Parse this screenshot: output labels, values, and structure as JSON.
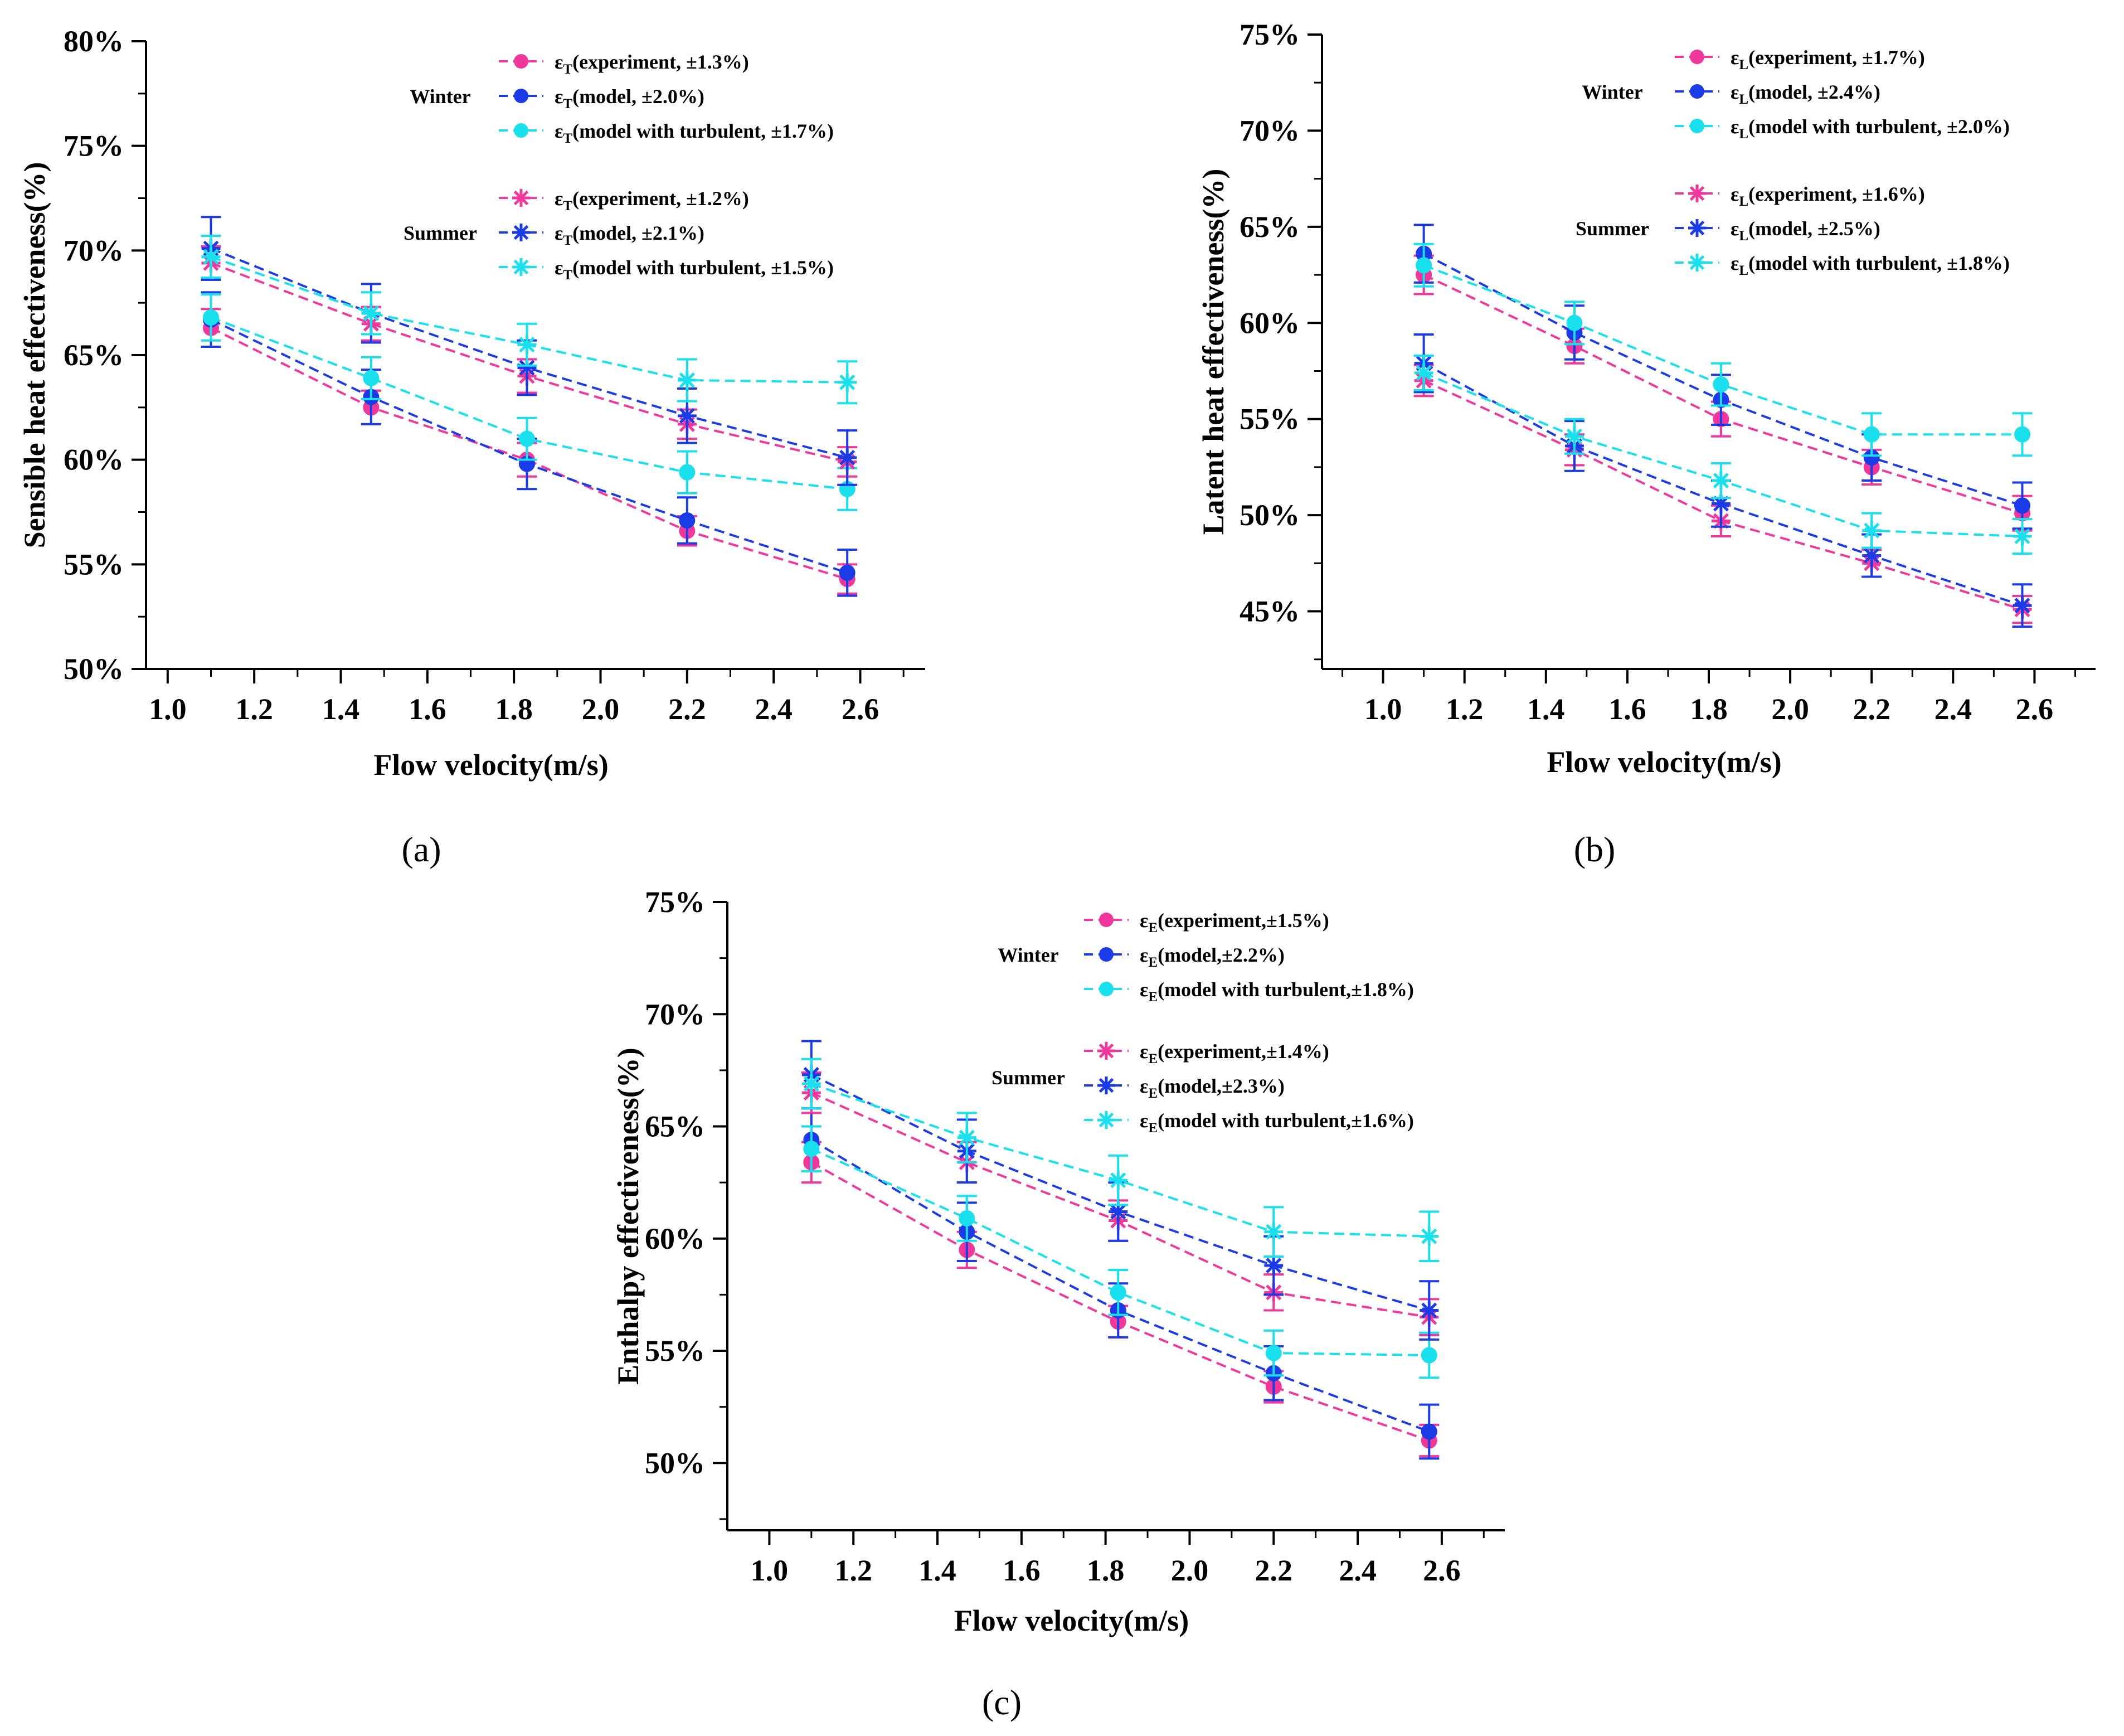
{
  "colors": {
    "experiment": "#f0379b",
    "model": "#1a3be6",
    "turbulent": "#19e0ec",
    "axis": "#000000"
  },
  "chart_data": [
    {
      "type": "line",
      "panel_label": "(a)",
      "xlabel": "Flow velocity(m/s)",
      "ylabel": "Sensible heat effectiveness(%)",
      "xlim": [
        0.95,
        2.75
      ],
      "ylim": [
        50,
        80
      ],
      "xticks": [
        "1.0",
        "1.2",
        "1.4",
        "1.6",
        "1.8",
        "2.0",
        "2.2",
        "2.4",
        "2.6"
      ],
      "yticks": [
        "50%",
        "55%",
        "60%",
        "65%",
        "70%",
        "75%",
        "80%"
      ],
      "season_labels": {
        "winter": "Winter",
        "summer": "Summer"
      },
      "x": [
        1.1,
        1.47,
        1.83,
        2.2,
        2.57
      ],
      "series": [
        {
          "name": "ε_T(experiment, ±1.3%)",
          "symbol": "ε",
          "sub": "T",
          "desc": "(experiment, ±1.3%)",
          "season": "winter",
          "marker": "circle",
          "color_key": "experiment",
          "values": [
            66.3,
            62.5,
            60.0,
            56.6,
            54.3
          ],
          "err": [
            0.9,
            0.8,
            0.8,
            0.7,
            0.7
          ]
        },
        {
          "name": "ε_T(model, ±2.0%)",
          "symbol": "ε",
          "sub": "T",
          "desc": "(model, ±2.0%)",
          "season": "winter",
          "marker": "circle",
          "color_key": "model",
          "values": [
            66.7,
            63.0,
            59.8,
            57.1,
            54.6
          ],
          "err": [
            1.3,
            1.3,
            1.2,
            1.1,
            1.1
          ]
        },
        {
          "name": "ε_T(model with turbulent, ±1.7%)",
          "symbol": "ε",
          "sub": "T",
          "desc": "(model with turbulent, ±1.7%)",
          "season": "winter",
          "marker": "circle",
          "color_key": "turbulent",
          "values": [
            66.8,
            63.9,
            61.0,
            59.4,
            58.6
          ],
          "err": [
            1.1,
            1.0,
            1.0,
            1.0,
            1.0
          ]
        },
        {
          "name": "ε_T(experiment, ±1.2%)",
          "symbol": "ε",
          "sub": "T",
          "desc": "(experiment, ±1.2%)",
          "season": "summer",
          "marker": "asterisk",
          "color_key": "experiment",
          "values": [
            69.4,
            66.5,
            64.0,
            61.7,
            59.9
          ],
          "err": [
            0.8,
            0.8,
            0.8,
            0.7,
            0.7
          ]
        },
        {
          "name": "ε_T(model, ±2.1%)",
          "symbol": "ε",
          "sub": "T",
          "desc": "(model, ±2.1%)",
          "season": "summer",
          "marker": "asterisk",
          "color_key": "model",
          "values": [
            70.1,
            67.0,
            64.4,
            62.1,
            60.1
          ],
          "err": [
            1.5,
            1.4,
            1.3,
            1.3,
            1.3
          ]
        },
        {
          "name": "ε_T(model with turbulent, ±1.5%)",
          "symbol": "ε",
          "sub": "T",
          "desc": "(model with turbulent, ±1.5%)",
          "season": "summer",
          "marker": "asterisk",
          "color_key": "turbulent",
          "values": [
            69.7,
            67.0,
            65.5,
            63.8,
            63.7
          ],
          "err": [
            1.0,
            1.0,
            1.0,
            1.0,
            1.0
          ]
        }
      ]
    },
    {
      "type": "line",
      "panel_label": "(b)",
      "xlabel": "Flow velocity(m/s)",
      "ylabel": "Latent heat effectiveness(%)",
      "xlim": [
        0.85,
        2.75
      ],
      "ylim": [
        42,
        75
      ],
      "xticks": [
        "1.0",
        "1.2",
        "1.4",
        "1.6",
        "1.8",
        "2.0",
        "2.2",
        "2.4",
        "2.6"
      ],
      "yticks": [
        "45%",
        "50%",
        "55%",
        "60%",
        "65%",
        "70%",
        "75%"
      ],
      "season_labels": {
        "winter": "Winter",
        "summer": "Summer"
      },
      "x": [
        1.1,
        1.47,
        1.83,
        2.2,
        2.57
      ],
      "series": [
        {
          "name": "ε_L(experiment, ±1.7%)",
          "symbol": "ε",
          "sub": "L",
          "desc": "(experiment, ±1.7%)",
          "season": "winter",
          "marker": "circle",
          "color_key": "experiment",
          "values": [
            62.5,
            58.8,
            55.0,
            52.5,
            50.1
          ],
          "err": [
            1.0,
            0.9,
            0.9,
            0.9,
            0.9
          ]
        },
        {
          "name": "ε_L(model, ±2.4%)",
          "symbol": "ε",
          "sub": "L",
          "desc": "(model, ±2.4%)",
          "season": "winter",
          "marker": "circle",
          "color_key": "model",
          "values": [
            63.6,
            59.5,
            56.0,
            53.0,
            50.5
          ],
          "err": [
            1.5,
            1.4,
            1.3,
            1.2,
            1.2
          ]
        },
        {
          "name": "ε_L(model with turbulent, ±2.0%)",
          "symbol": "ε",
          "sub": "L",
          "desc": "(model with turbulent, ±2.0%)",
          "season": "winter",
          "marker": "circle",
          "color_key": "turbulent",
          "values": [
            63.0,
            60.0,
            56.8,
            54.2,
            54.2
          ],
          "err": [
            1.1,
            1.1,
            1.1,
            1.1,
            1.1
          ]
        },
        {
          "name": "ε_L(experiment, ±1.6%)",
          "symbol": "ε",
          "sub": "L",
          "desc": "(experiment, ±1.6%)",
          "season": "summer",
          "marker": "asterisk",
          "color_key": "experiment",
          "values": [
            57.0,
            53.4,
            49.7,
            47.5,
            45.1
          ],
          "err": [
            0.8,
            0.8,
            0.8,
            0.7,
            0.7
          ]
        },
        {
          "name": "ε_L(model, ±2.5%)",
          "symbol": "ε",
          "sub": "L",
          "desc": "(model, ±2.5%)",
          "season": "summer",
          "marker": "asterisk",
          "color_key": "model",
          "values": [
            57.9,
            53.6,
            50.6,
            47.9,
            45.3
          ],
          "err": [
            1.5,
            1.3,
            1.2,
            1.1,
            1.1
          ]
        },
        {
          "name": "ε_L(model with turbulent, ±1.8%)",
          "symbol": "ε",
          "sub": "L",
          "desc": "(model with turbulent, ±1.8%)",
          "season": "summer",
          "marker": "asterisk",
          "color_key": "turbulent",
          "values": [
            57.4,
            54.1,
            51.8,
            49.2,
            48.9
          ],
          "err": [
            0.9,
            0.9,
            0.9,
            0.9,
            0.9
          ]
        }
      ]
    },
    {
      "type": "line",
      "panel_label": "(c)",
      "xlabel": "Flow velocity(m/s)",
      "ylabel": "Enthalpy effectiveness(%)",
      "xlim": [
        0.9,
        2.75
      ],
      "ylim": [
        47,
        75
      ],
      "xticks": [
        "1.0",
        "1.2",
        "1.4",
        "1.6",
        "1.8",
        "2.0",
        "2.2",
        "2.4",
        "2.6"
      ],
      "yticks": [
        "50%",
        "55%",
        "60%",
        "65%",
        "70%",
        "75%"
      ],
      "season_labels": {
        "winter": "Winter",
        "summer": "Summer"
      },
      "x": [
        1.1,
        1.47,
        1.83,
        2.2,
        2.57
      ],
      "series": [
        {
          "name": "ε_E(experiment,±1.5%)",
          "symbol": "ε",
          "sub": "E",
          "desc": "(experiment,±1.5%)",
          "season": "winter",
          "marker": "circle",
          "color_key": "experiment",
          "values": [
            63.4,
            59.5,
            56.3,
            53.4,
            51.0
          ],
          "err": [
            0.9,
            0.8,
            0.7,
            0.7,
            0.7
          ]
        },
        {
          "name": "ε_E(model,±2.2%)",
          "symbol": "ε",
          "sub": "E",
          "desc": "(model,±2.2%)",
          "season": "winter",
          "marker": "circle",
          "color_key": "model",
          "values": [
            64.4,
            60.3,
            56.8,
            54.0,
            51.4
          ],
          "err": [
            1.4,
            1.3,
            1.2,
            1.2,
            1.2
          ]
        },
        {
          "name": "ε_E(model with turbulent,±1.8%)",
          "symbol": "ε",
          "sub": "E",
          "desc": "(model with turbulent,±1.8%)",
          "season": "winter",
          "marker": "circle",
          "color_key": "turbulent",
          "values": [
            64.0,
            60.9,
            57.6,
            54.9,
            54.8
          ],
          "err": [
            1.0,
            1.0,
            1.0,
            1.0,
            1.0
          ]
        },
        {
          "name": "ε_E(experiment,±1.4%)",
          "symbol": "ε",
          "sub": "E",
          "desc": "(experiment,±1.4%)",
          "season": "summer",
          "marker": "asterisk",
          "color_key": "experiment",
          "values": [
            66.5,
            63.4,
            60.8,
            57.6,
            56.5
          ],
          "err": [
            0.9,
            0.9,
            0.9,
            0.8,
            0.8
          ]
        },
        {
          "name": "ε_E(model,±2.3%)",
          "symbol": "ε",
          "sub": "E",
          "desc": "(model,±2.3%)",
          "season": "summer",
          "marker": "asterisk",
          "color_key": "model",
          "values": [
            67.3,
            63.9,
            61.2,
            58.8,
            56.8
          ],
          "err": [
            1.5,
            1.4,
            1.3,
            1.3,
            1.3
          ]
        },
        {
          "name": "ε_E(model with turbulent,±1.6%)",
          "symbol": "ε",
          "sub": "E",
          "desc": "(model with turbulent,±1.6%)",
          "season": "summer",
          "marker": "asterisk",
          "color_key": "turbulent",
          "values": [
            66.9,
            64.5,
            62.6,
            60.3,
            60.1
          ],
          "err": [
            1.1,
            1.1,
            1.1,
            1.1,
            1.1
          ]
        }
      ]
    }
  ]
}
